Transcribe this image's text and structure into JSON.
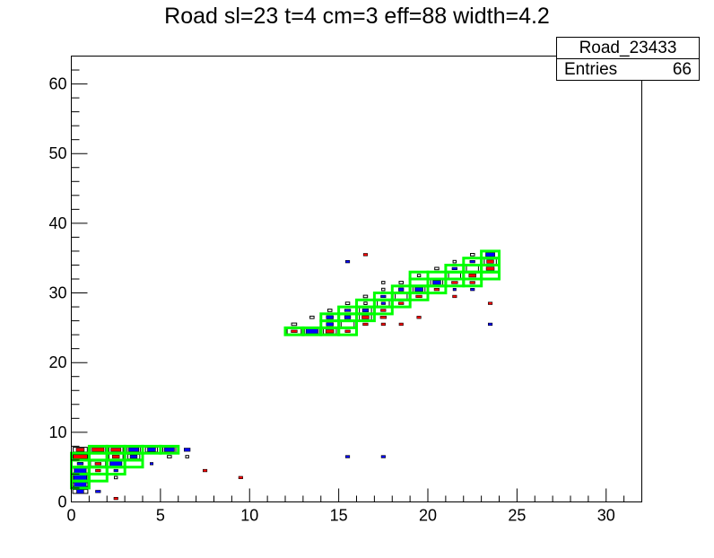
{
  "title": "Road sl=23 t=4 cm=3 eff=88 width=4.2",
  "stats": {
    "name": "Road_23433",
    "entries_label": "Entries",
    "entries_value": "66"
  },
  "chart_data": {
    "type": "heatmap",
    "title": "Road sl=23 t=4 cm=3 eff=88 width=4.2",
    "xlabel": "",
    "ylabel": "",
    "xlim": [
      0,
      32
    ],
    "ylim": [
      0,
      64
    ],
    "x_ticks": [
      0,
      5,
      10,
      15,
      20,
      25,
      30
    ],
    "y_ticks": [
      0,
      10,
      20,
      30,
      40,
      50,
      60
    ],
    "colors": {
      "blue": "#0000ff",
      "red": "#ff0000",
      "black": "#000000",
      "road": "#00ff00"
    },
    "layers": [
      {
        "color": "black",
        "cells": [
          [
            0,
            1.5,
            1.5,
            0.5
          ],
          [
            0,
            2.5,
            1.5,
            0.5
          ],
          [
            0,
            3.5,
            1.5,
            0.6
          ],
          [
            0,
            4.5,
            1.6,
            0.6
          ],
          [
            0,
            5.5,
            1.6,
            0.7
          ],
          [
            0,
            6.5,
            1.5,
            0.7
          ],
          [
            0,
            7.5,
            1.4,
            0.6
          ],
          [
            1,
            5.5,
            1.5,
            0.6
          ],
          [
            1,
            6.5,
            1.6,
            0.7
          ],
          [
            1,
            7.5,
            1.5,
            0.7
          ],
          [
            2,
            6.5,
            1.4,
            0.7
          ],
          [
            2,
            7.5,
            1.4,
            0.7
          ],
          [
            3,
            6.5,
            1.2,
            0.6
          ],
          [
            3,
            7.5,
            1.3,
            0.7
          ],
          [
            4,
            7.5,
            1.2,
            0.6
          ],
          [
            5,
            7.5,
            1.3,
            0.7
          ],
          [
            12,
            24.5,
            1.4,
            0.7
          ],
          [
            13,
            24.5,
            1.5,
            0.7
          ],
          [
            14,
            24.5,
            1.3,
            0.7
          ],
          [
            15,
            25.5,
            1.3,
            0.7
          ],
          [
            16,
            26.5,
            1.2,
            0.7
          ],
          [
            16,
            27.5,
            1.2,
            0.7
          ],
          [
            17,
            28.5,
            1.2,
            0.7
          ],
          [
            18,
            29.5,
            1.2,
            0.7
          ],
          [
            19,
            30.5,
            1.2,
            0.7
          ],
          [
            20,
            31.5,
            1.2,
            0.7
          ],
          [
            21,
            32.5,
            1.2,
            0.7
          ],
          [
            22,
            33.5,
            1.2,
            0.7
          ],
          [
            23,
            34.5,
            1.2,
            0.7
          ],
          [
            12,
            25.5,
            0.5,
            0.3
          ],
          [
            13,
            26.5,
            0.4,
            0.3
          ],
          [
            14,
            26.5,
            0.4,
            0.3
          ],
          [
            14,
            27.5,
            0.4,
            0.3
          ],
          [
            15,
            28.5,
            0.4,
            0.3
          ],
          [
            16,
            28.5,
            0.3,
            0.3
          ],
          [
            16,
            29.5,
            0.4,
            0.3
          ],
          [
            17,
            30.5,
            0.3,
            0.3
          ],
          [
            17,
            31.5,
            0.3,
            0.3
          ],
          [
            18,
            31.5,
            0.4,
            0.3
          ],
          [
            19,
            32.5,
            0.3,
            0.3
          ],
          [
            20,
            33.5,
            0.4,
            0.3
          ],
          [
            21,
            34.5,
            0.3,
            0.3
          ],
          [
            22,
            35.5,
            0.4,
            0.3
          ],
          [
            5,
            6.5,
            0.4,
            0.3
          ],
          [
            6,
            6.5,
            0.3,
            0.3
          ],
          [
            2,
            3.5,
            0.3,
            0.3
          ]
        ]
      },
      {
        "color": "red",
        "cells": [
          [
            0,
            6.5,
            1.4,
            0.5
          ],
          [
            0,
            7.5,
            0.8,
            0.4
          ],
          [
            1,
            7.5,
            1.2,
            0.5
          ],
          [
            2,
            7.5,
            1.0,
            0.4
          ],
          [
            2,
            6.5,
            0.7,
            0.4
          ],
          [
            1,
            5.5,
            0.6,
            0.3
          ],
          [
            1,
            4.5,
            0.5,
            0.3
          ],
          [
            0,
            5.5,
            0.5,
            0.3
          ],
          [
            12,
            24.5,
            0.6,
            0.3
          ],
          [
            14,
            24.5,
            0.8,
            0.4
          ],
          [
            15,
            24.5,
            0.5,
            0.3
          ],
          [
            16,
            25.5,
            0.5,
            0.3
          ],
          [
            16,
            26.5,
            0.7,
            0.4
          ],
          [
            17,
            26.5,
            0.6,
            0.3
          ],
          [
            17,
            27.5,
            0.5,
            0.3
          ],
          [
            18,
            28.5,
            0.5,
            0.3
          ],
          [
            19,
            29.5,
            0.6,
            0.3
          ],
          [
            20,
            30.5,
            0.5,
            0.3
          ],
          [
            21,
            31.5,
            0.6,
            0.3
          ],
          [
            22,
            32.5,
            0.7,
            0.4
          ],
          [
            23,
            33.5,
            0.8,
            0.4
          ],
          [
            23,
            34.5,
            0.7,
            0.4
          ],
          [
            22,
            31.5,
            0.5,
            0.3
          ],
          [
            21,
            29.5,
            0.4,
            0.3
          ],
          [
            17,
            25.5,
            0.4,
            0.3
          ],
          [
            18,
            25.5,
            0.4,
            0.3
          ],
          [
            19,
            26.5,
            0.4,
            0.3
          ],
          [
            23,
            28.5,
            0.4,
            0.3
          ],
          [
            16,
            35.5,
            0.4,
            0.3
          ],
          [
            7,
            4.5,
            0.4,
            0.3
          ],
          [
            9,
            3.5,
            0.4,
            0.3
          ],
          [
            2,
            0.5,
            0.4,
            0.3
          ]
        ]
      },
      {
        "color": "blue",
        "cells": [
          [
            0,
            1.5,
            0.7,
            0.5
          ],
          [
            0,
            2.5,
            1.2,
            0.6
          ],
          [
            0,
            3.5,
            1.3,
            0.7
          ],
          [
            0,
            4.5,
            1.2,
            0.7
          ],
          [
            0,
            5.5,
            0.6,
            0.3
          ],
          [
            1,
            1.5,
            0.5,
            0.3
          ],
          [
            2,
            4.5,
            0.4,
            0.3
          ],
          [
            2,
            5.5,
            1.2,
            0.6
          ],
          [
            3,
            6.5,
            0.7,
            0.4
          ],
          [
            3,
            7.5,
            1.0,
            0.5
          ],
          [
            4,
            5.5,
            0.3,
            0.3
          ],
          [
            4,
            7.5,
            0.8,
            0.5
          ],
          [
            5,
            7.5,
            1.0,
            0.5
          ],
          [
            6,
            7.5,
            0.6,
            0.4
          ],
          [
            13,
            24.5,
            1.2,
            0.6
          ],
          [
            14,
            25.5,
            0.7,
            0.4
          ],
          [
            14,
            26.5,
            0.7,
            0.4
          ],
          [
            15,
            26.5,
            0.6,
            0.4
          ],
          [
            15,
            27.5,
            0.6,
            0.3
          ],
          [
            16,
            27.5,
            0.6,
            0.4
          ],
          [
            17,
            28.5,
            0.4,
            0.3
          ],
          [
            17,
            29.5,
            0.5,
            0.3
          ],
          [
            18,
            30.5,
            0.5,
            0.4
          ],
          [
            19,
            30.5,
            0.8,
            0.5
          ],
          [
            20,
            31.5,
            0.8,
            0.5
          ],
          [
            21,
            33.5,
            0.5,
            0.3
          ],
          [
            22,
            34.5,
            0.5,
            0.3
          ],
          [
            23,
            35.5,
            0.9,
            0.5
          ],
          [
            22,
            30.5,
            0.4,
            0.3
          ],
          [
            21,
            30.5,
            0.3,
            0.3
          ],
          [
            15,
            34.5,
            0.4,
            0.3
          ],
          [
            23,
            25.5,
            0.4,
            0.3
          ],
          [
            15,
            6.5,
            0.4,
            0.3
          ],
          [
            17,
            6.5,
            0.4,
            0.3
          ]
        ]
      }
    ],
    "road": [
      [
        0,
        2
      ],
      [
        0,
        3
      ],
      [
        0,
        4
      ],
      [
        0,
        5
      ],
      [
        0,
        6
      ],
      [
        1,
        3
      ],
      [
        1,
        4
      ],
      [
        1,
        5
      ],
      [
        1,
        6
      ],
      [
        1,
        7
      ],
      [
        2,
        4
      ],
      [
        2,
        5
      ],
      [
        2,
        6
      ],
      [
        2,
        7
      ],
      [
        3,
        5
      ],
      [
        3,
        6
      ],
      [
        3,
        7
      ],
      [
        4,
        7
      ],
      [
        5,
        7
      ],
      [
        12,
        24
      ],
      [
        13,
        24
      ],
      [
        14,
        24
      ],
      [
        15,
        24
      ],
      [
        14,
        25
      ],
      [
        15,
        25
      ],
      [
        14,
        26
      ],
      [
        15,
        26
      ],
      [
        16,
        26
      ],
      [
        15,
        27
      ],
      [
        16,
        27
      ],
      [
        16,
        28
      ],
      [
        17,
        27
      ],
      [
        17,
        28
      ],
      [
        17,
        29
      ],
      [
        18,
        28
      ],
      [
        18,
        29
      ],
      [
        18,
        30
      ],
      [
        19,
        29
      ],
      [
        19,
        30
      ],
      [
        19,
        31
      ],
      [
        19,
        32
      ],
      [
        20,
        30
      ],
      [
        20,
        31
      ],
      [
        20,
        32
      ],
      [
        21,
        31
      ],
      [
        21,
        32
      ],
      [
        21,
        33
      ],
      [
        22,
        31
      ],
      [
        22,
        32
      ],
      [
        22,
        33
      ],
      [
        22,
        34
      ],
      [
        23,
        32
      ],
      [
        23,
        33
      ],
      [
        23,
        34
      ],
      [
        23,
        35
      ]
    ]
  }
}
